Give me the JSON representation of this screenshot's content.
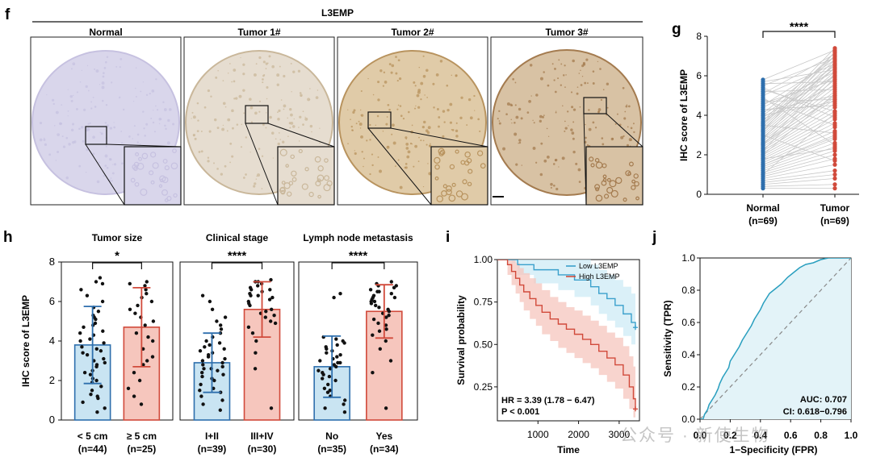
{
  "panel_letters": {
    "f": "f",
    "g": "g",
    "h": "h",
    "i": "i",
    "j": "j"
  },
  "panel_f": {
    "protein": "L3EMP",
    "images": [
      {
        "title": "Normal",
        "tone": "#d9d6eb",
        "tone2": "#c6c1e0"
      },
      {
        "title": "Tumor 1#",
        "tone": "#e6ddd0",
        "tone2": "#c9b79a"
      },
      {
        "title": "Tumor 2#",
        "tone": "#e0cba8",
        "tone2": "#b8935e"
      },
      {
        "title": "Tumor 3#",
        "tone": "#d8c2a4",
        "tone2": "#a47b4f"
      }
    ]
  },
  "chart_data": [
    {
      "id": "g",
      "type": "scatter",
      "ylabel": "IHC score of L3EMP",
      "ylim": [
        0,
        8
      ],
      "yticks": [
        0,
        2,
        4,
        6,
        8
      ],
      "categories": [
        "Normal\n(n=69)",
        "Tumor\n(n=69)"
      ],
      "category_lines": [
        [
          "Normal",
          "(n=69)"
        ],
        [
          "Tumor",
          "(n=69)"
        ]
      ],
      "significance": "****",
      "colors": {
        "normal": "#2e6fad",
        "tumor": "#d14a3b",
        "pair_line": "#c8c8c8"
      },
      "normal_values": [
        0.3,
        0.4,
        0.5,
        0.6,
        0.7,
        0.8,
        0.9,
        1.0,
        1.1,
        1.2,
        1.3,
        1.4,
        1.5,
        1.6,
        1.7,
        1.8,
        1.9,
        2.0,
        2.1,
        2.2,
        2.3,
        2.4,
        2.5,
        2.6,
        2.7,
        2.8,
        2.9,
        3.0,
        3.1,
        3.2,
        3.3,
        3.4,
        3.5,
        3.6,
        3.7,
        3.8,
        3.9,
        4.0,
        4.1,
        4.2,
        4.3,
        4.4,
        4.5,
        4.6,
        4.7,
        4.8,
        4.9,
        5.0,
        5.1,
        5.2,
        5.3,
        5.4,
        5.5,
        5.6,
        5.7,
        5.8,
        1.0,
        1.5,
        2.0,
        2.5,
        3.0,
        3.5,
        4.0,
        2.2,
        2.8,
        3.2,
        1.8,
        2.6,
        3.6
      ],
      "tumor_values": [
        0.3,
        0.5,
        0.8,
        1.0,
        1.2,
        1.5,
        1.8,
        2.0,
        2.2,
        2.4,
        2.6,
        2.8,
        3.0,
        3.2,
        3.4,
        3.6,
        3.8,
        4.0,
        4.2,
        4.4,
        4.6,
        4.8,
        5.0,
        5.2,
        5.4,
        5.6,
        5.8,
        6.0,
        6.2,
        6.4,
        6.6,
        6.8,
        7.0,
        7.2,
        7.4,
        5.5,
        6.0,
        6.5,
        7.0,
        5.0,
        4.5,
        6.2,
        6.8,
        5.8,
        4.8,
        3.5,
        2.5,
        6.6,
        7.1,
        5.3,
        4.2,
        3.9,
        6.9,
        5.7,
        6.3,
        7.3,
        4.1,
        2.9,
        5.1,
        6.1,
        1.7,
        3.1,
        4.7,
        5.9,
        6.7,
        7.2,
        2.3,
        4.9,
        6.4
      ]
    },
    {
      "id": "h",
      "type": "bar",
      "ylabel": "IHC score of L3EMP",
      "ylim": [
        0,
        8
      ],
      "yticks": [
        0,
        2,
        4,
        6,
        8
      ],
      "groups": [
        {
          "title": "Tumor size",
          "significance": "*",
          "bars": [
            {
              "label": "< 5 cm",
              "n": "(n=44)",
              "mean": 3.8,
              "sd": 1.95,
              "color": "blue",
              "points": [
                0.4,
                0.6,
                0.9,
                1.1,
                1.3,
                1.5,
                1.7,
                1.9,
                2.1,
                2.3,
                2.5,
                2.7,
                2.9,
                3.1,
                3.3,
                3.5,
                3.7,
                3.9,
                4.1,
                4.3,
                4.5,
                4.7,
                4.9,
                5.1,
                5.3,
                5.5,
                5.7,
                6.0,
                6.3,
                6.6,
                7.0,
                7.2,
                2.0,
                2.4,
                3.0,
                3.6,
                4.0,
                4.4,
                4.8,
                5.2,
                1.2,
                2.8,
                3.4,
                6.9
              ]
            },
            {
              "label": "≥ 5 cm",
              "n": "(n=25)",
              "mean": 4.7,
              "sd": 2.0,
              "color": "red",
              "points": [
                0.8,
                1.2,
                1.6,
                2.0,
                2.4,
                2.8,
                3.2,
                3.6,
                4.0,
                4.4,
                4.8,
                5.2,
                5.6,
                6.0,
                6.4,
                6.8,
                7.0,
                5.0,
                5.8,
                6.2,
                6.6,
                3.0,
                4.2,
                5.4,
                6.9
              ]
            }
          ]
        },
        {
          "title": "Clinical stage",
          "significance": "****",
          "bars": [
            {
              "label": "I+II",
              "n": "(n=39)",
              "mean": 2.9,
              "sd": 1.5,
              "color": "blue",
              "points": [
                0.5,
                0.8,
                1.0,
                1.2,
                1.4,
                1.6,
                1.8,
                2.0,
                2.1,
                2.2,
                2.3,
                2.4,
                2.5,
                2.6,
                2.7,
                2.8,
                2.9,
                3.0,
                3.1,
                3.2,
                3.3,
                3.4,
                3.5,
                3.6,
                3.7,
                3.8,
                4.0,
                4.2,
                4.4,
                4.6,
                4.8,
                5.0,
                5.2,
                5.6,
                6.0,
                6.3,
                1.5,
                2.6,
                3.9
              ]
            },
            {
              "label": "III+IV",
              "n": "(n=30)",
              "mean": 5.6,
              "sd": 1.4,
              "color": "red",
              "points": [
                0.6,
                2.6,
                3.4,
                4.0,
                4.4,
                4.7,
                5.0,
                5.2,
                5.4,
                5.6,
                5.8,
                6.0,
                6.1,
                6.2,
                6.3,
                6.4,
                6.5,
                6.6,
                6.7,
                6.8,
                6.9,
                7.0,
                7.1,
                5.5,
                5.9,
                6.3,
                4.9,
                6.6,
                7.0,
                5.3
              ]
            }
          ]
        },
        {
          "title": "Lymph node metastasis",
          "significance": "****",
          "bars": [
            {
              "label": "No",
              "n": "(n=35)",
              "mean": 2.7,
              "sd": 1.55,
              "color": "blue",
              "points": [
                0.4,
                0.6,
                0.8,
                1.0,
                1.2,
                1.4,
                1.6,
                1.8,
                2.0,
                2.1,
                2.2,
                2.3,
                2.4,
                2.5,
                2.6,
                2.7,
                2.8,
                2.9,
                3.0,
                3.1,
                3.2,
                3.3,
                3.4,
                3.5,
                3.6,
                3.7,
                3.8,
                3.9,
                4.0,
                4.1,
                4.2,
                6.2,
                6.4,
                1.5,
                2.9
              ]
            },
            {
              "label": "Yes",
              "n": "(n=34)",
              "mean": 5.5,
              "sd": 1.35,
              "color": "red",
              "points": [
                0.6,
                2.4,
                3.0,
                3.6,
                4.0,
                4.3,
                4.6,
                4.9,
                5.1,
                5.3,
                5.5,
                5.7,
                5.9,
                6.0,
                6.1,
                6.2,
                6.3,
                6.4,
                6.5,
                6.6,
                6.7,
                6.8,
                6.9,
                7.0,
                5.2,
                5.8,
                6.2,
                4.8,
                6.5,
                5.6,
                4.5,
                6.0,
                5.4,
                6.8
              ]
            }
          ]
        }
      ],
      "colors": {
        "blue_fill": "#c9e4f2",
        "blue_line": "#2e6fad",
        "red_fill": "#f6c6bd",
        "red_line": "#d14a3b"
      }
    },
    {
      "id": "i",
      "type": "line",
      "xlabel": "Time",
      "ylabel": "Survival probability",
      "xlim": [
        0,
        3500
      ],
      "ylim": [
        0.05,
        1.0
      ],
      "xticks": [
        1000,
        2000,
        3000
      ],
      "yticks": [
        0.25,
        0.5,
        0.75,
        1.0
      ],
      "ytick_labels": [
        "0.25",
        "0.50",
        "0.75",
        "1.00"
      ],
      "legend_position": "top-right",
      "annotation": [
        "HR = 3.39 (1.78 − 6.47)",
        "P < 0.001"
      ],
      "series": [
        {
          "name": "Low L3EMP",
          "color": "#3aa0cc",
          "band": "#cdebf5",
          "x": [
            0,
            350,
            500,
            700,
            900,
            1100,
            1300,
            1500,
            1700,
            1900,
            2100,
            2300,
            2500,
            2700,
            2900,
            3100,
            3300,
            3400
          ],
          "y": [
            1.0,
            1.0,
            0.97,
            0.97,
            0.94,
            0.94,
            0.94,
            0.91,
            0.91,
            0.88,
            0.88,
            0.84,
            0.8,
            0.77,
            0.73,
            0.68,
            0.63,
            0.6
          ],
          "upper": [
            1.0,
            1.0,
            1.0,
            1.0,
            1.0,
            1.0,
            1.0,
            1.0,
            1.0,
            1.0,
            1.0,
            0.97,
            0.94,
            0.91,
            0.88,
            0.84,
            0.8,
            0.78
          ],
          "lower": [
            1.0,
            0.98,
            0.91,
            0.91,
            0.86,
            0.86,
            0.86,
            0.82,
            0.82,
            0.78,
            0.78,
            0.73,
            0.68,
            0.64,
            0.6,
            0.55,
            0.5,
            0.47
          ]
        },
        {
          "name": "High L3EMP",
          "color": "#d14a3b",
          "band": "#f6c6bd",
          "x": [
            0,
            250,
            350,
            450,
            550,
            650,
            800,
            950,
            1100,
            1300,
            1500,
            1700,
            1900,
            2100,
            2300,
            2500,
            2700,
            2900,
            3100,
            3250,
            3350,
            3400
          ],
          "y": [
            1.0,
            0.97,
            0.93,
            0.89,
            0.85,
            0.81,
            0.77,
            0.73,
            0.69,
            0.65,
            0.62,
            0.59,
            0.56,
            0.53,
            0.5,
            0.46,
            0.42,
            0.38,
            0.32,
            0.25,
            0.18,
            0.12
          ],
          "upper": [
            1.0,
            1.0,
            1.0,
            0.98,
            0.95,
            0.92,
            0.89,
            0.86,
            0.82,
            0.78,
            0.75,
            0.72,
            0.7,
            0.67,
            0.64,
            0.61,
            0.57,
            0.54,
            0.49,
            0.43,
            0.37,
            0.32
          ],
          "lower": [
            1.0,
            0.91,
            0.85,
            0.8,
            0.75,
            0.7,
            0.65,
            0.61,
            0.56,
            0.52,
            0.48,
            0.45,
            0.42,
            0.39,
            0.36,
            0.32,
            0.28,
            0.24,
            0.18,
            0.12,
            0.07,
            0.05
          ]
        }
      ]
    },
    {
      "id": "j",
      "type": "line",
      "xlabel": "1−Specificity (FPR)",
      "ylabel": "Sensitivity (TPR)",
      "xlim": [
        0,
        1
      ],
      "ylim": [
        0,
        1
      ],
      "xticks": [
        0.0,
        0.2,
        0.4,
        0.6,
        0.8,
        1.0
      ],
      "xtick_labels": [
        "0.0",
        "0.2",
        "0.4",
        "0.6",
        "0.8",
        "1.0"
      ],
      "yticks": [
        0.0,
        0.2,
        0.4,
        0.6,
        0.8,
        1.0
      ],
      "ytick_labels": [
        "0.0",
        "0.2",
        "0.4",
        "0.6",
        "0.8",
        "1.0"
      ],
      "annotation": [
        "AUC: 0.707",
        "CI: 0.618−0.796"
      ],
      "colors": {
        "curve": "#2a9fbf",
        "fill": "#e3f3f8",
        "diag": "#888888"
      },
      "roc_x": [
        0,
        0.02,
        0.03,
        0.05,
        0.06,
        0.08,
        0.1,
        0.12,
        0.13,
        0.15,
        0.17,
        0.19,
        0.2,
        0.22,
        0.24,
        0.26,
        0.28,
        0.3,
        0.32,
        0.34,
        0.36,
        0.38,
        0.4,
        0.42,
        0.44,
        0.46,
        0.5,
        0.54,
        0.58,
        0.62,
        0.66,
        0.7,
        0.75,
        0.8,
        0.85,
        0.9,
        0.95,
        1.0
      ],
      "roc_y": [
        0,
        0.0,
        0.03,
        0.06,
        0.09,
        0.12,
        0.15,
        0.19,
        0.22,
        0.26,
        0.29,
        0.32,
        0.36,
        0.39,
        0.42,
        0.45,
        0.49,
        0.52,
        0.55,
        0.58,
        0.62,
        0.65,
        0.68,
        0.72,
        0.75,
        0.78,
        0.81,
        0.84,
        0.88,
        0.91,
        0.94,
        0.96,
        0.97,
        0.99,
        1.0,
        1.0,
        1.0,
        1.0
      ]
    }
  ],
  "watermark": "公众号 · 新使生物"
}
